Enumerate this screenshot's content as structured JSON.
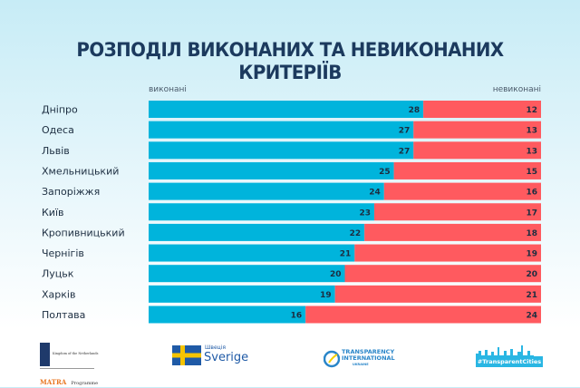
{
  "chart_data": {
    "type": "bar",
    "stacked": true,
    "orientation": "horizontal",
    "title": "РОЗПОДІЛ ВИКОНАНИХ ТА НЕВИКОНАНИХ КРИТЕРІЇВ",
    "categories": [
      "Дніпро",
      "Одеса",
      "Львів",
      "Хмельницький",
      "Запоріжжя",
      "Київ",
      "Кропивницький",
      "Чернігів",
      "Луцьк",
      "Харків",
      "Полтава"
    ],
    "series": [
      {
        "name": "виконані",
        "color": "#00b4dc",
        "values": [
          28,
          27,
          27,
          25,
          24,
          23,
          22,
          21,
          20,
          19,
          16
        ]
      },
      {
        "name": "невиконані",
        "color": "#ff5a5f",
        "values": [
          12,
          13,
          13,
          15,
          16,
          17,
          18,
          19,
          20,
          21,
          24
        ]
      }
    ],
    "xlim": [
      0,
      40
    ],
    "grid": false,
    "legend": "top"
  },
  "footer": {
    "netherlands": {
      "line1": "Kingdom of the Netherlands",
      "line2a": "MATRA",
      "line2b": "Programme"
    },
    "sweden": {
      "small": "Швеція",
      "big": "Sverige"
    },
    "ti": {
      "l1": "TRANSPARENCY",
      "l2": "INTERNATIONAL",
      "l3": "UKRAINE"
    },
    "tc": {
      "text": "#TransparentCities"
    }
  }
}
